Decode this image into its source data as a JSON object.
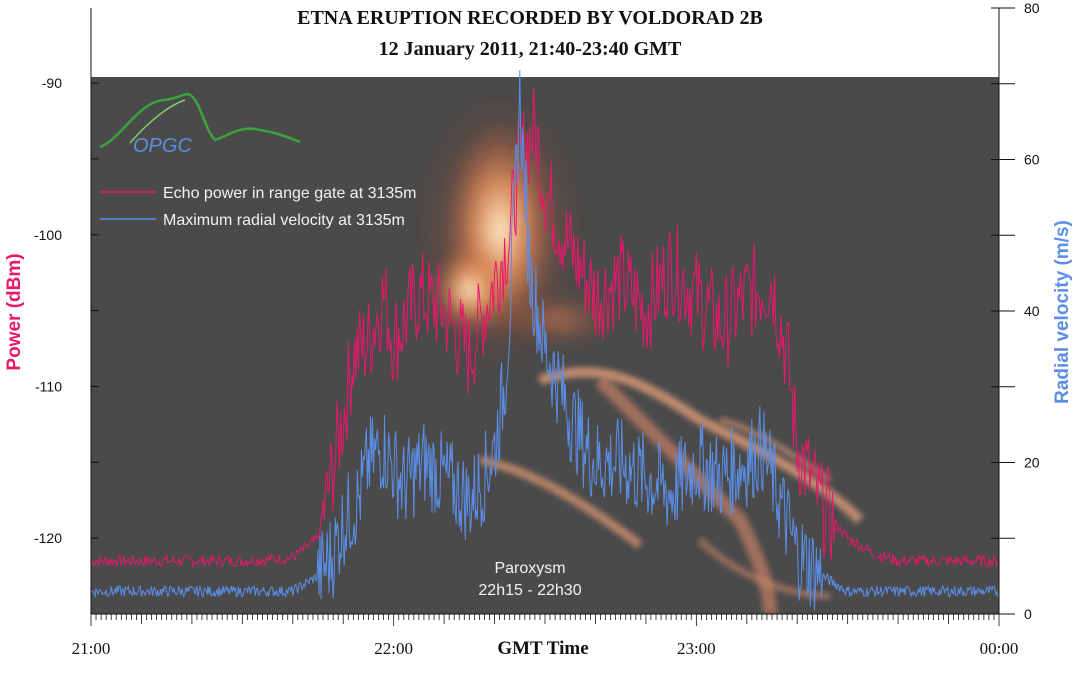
{
  "chart_data": {
    "type": "line",
    "title": "ETNA ERUPTION  RECORDED BY VOLDORAD 2B",
    "subtitle": "12 January 2011, 21:40-23:40 GMT",
    "xlabel": "GMT Time",
    "ylabel_left": "Power (dBm)",
    "ylabel_right": "Radial velocity (m/s)",
    "x_ticks": [
      "21:00",
      "22:00",
      "23:00",
      "00:00"
    ],
    "xlim_minutes": [
      0,
      180
    ],
    "ylim_left": [
      -125,
      -89.6
    ],
    "ylim_right": [
      0,
      80
    ],
    "yticks_left": [
      -90,
      -100,
      -110,
      -120
    ],
    "yticks_right": [
      0,
      20,
      40,
      60,
      80
    ],
    "grid": false,
    "legend_position": "top-left",
    "series": [
      {
        "name": "Echo power in range gate at 3135m",
        "color": "#e8186a",
        "axis": "left",
        "x_minutes": [
          0,
          10,
          20,
          30,
          40,
          45,
          47,
          50,
          52,
          55,
          58,
          60,
          65,
          70,
          75,
          80,
          83,
          85,
          88,
          90,
          95,
          100,
          105,
          110,
          115,
          120,
          125,
          130,
          135,
          138,
          140,
          145,
          150,
          155,
          160,
          170,
          180
        ],
        "values": [
          -121.5,
          -121.5,
          -121.5,
          -121.5,
          -121.3,
          -120,
          -117,
          -112,
          -108,
          -107,
          -104,
          -107,
          -104,
          -105,
          -108,
          -103,
          -100,
          -95,
          -93,
          -97,
          -101,
          -104,
          -103,
          -105,
          -102,
          -104,
          -106,
          -104,
          -103,
          -108,
          -114,
          -118,
          -120,
          -121,
          -121.5,
          -121.5,
          -121.5
        ]
      },
      {
        "name": "Maximum radial velocity at 3135m",
        "color": "#5b8ee6",
        "axis": "right",
        "x_minutes": [
          0,
          10,
          20,
          30,
          40,
          45,
          48,
          50,
          53,
          55,
          58,
          62,
          66,
          70,
          75,
          78,
          80,
          82,
          83,
          85,
          87,
          90,
          93,
          95,
          98,
          100,
          105,
          110,
          115,
          120,
          125,
          130,
          133,
          136,
          140,
          145,
          150,
          160,
          170,
          180
        ],
        "values": [
          3,
          3,
          3,
          3,
          3,
          5,
          8,
          12,
          15,
          20,
          22,
          17,
          20,
          18,
          15,
          18,
          22,
          30,
          40,
          68,
          45,
          35,
          30,
          26,
          22,
          20,
          20,
          18,
          16,
          20,
          18,
          20,
          22,
          16,
          8,
          5,
          3,
          3,
          3,
          3
        ]
      }
    ],
    "annotations": [
      "Paroxysm",
      "22h15 - 22h30"
    ],
    "logo_text": "OPGC"
  }
}
